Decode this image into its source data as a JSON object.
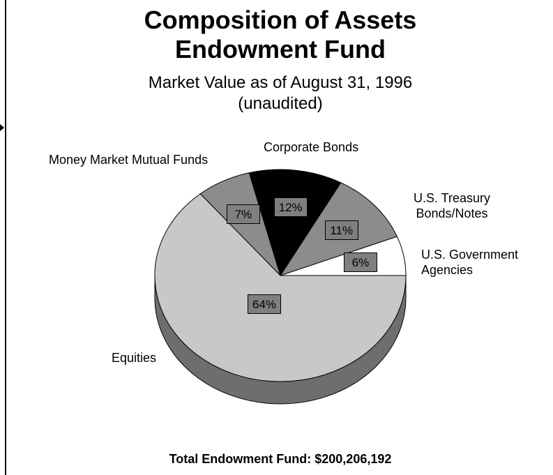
{
  "chart_data": {
    "type": "pie",
    "title": "Composition of Assets Endowment Fund",
    "subtitle": "Market Value as of August 31, 1996 (unaudited)",
    "categories": [
      "U.S. Government Agencies",
      "U.S. Treasury Bonds/Notes",
      "Corporate Bonds",
      "Money Market Mutual Funds",
      "Equities"
    ],
    "values": [
      6,
      11,
      12,
      7,
      64
    ],
    "value_labels": [
      "6%",
      "11%",
      "12%",
      "7%",
      "64%"
    ],
    "colors": [
      "#ffffff",
      "#8c8c8c",
      "#000000",
      "#8c8c8c",
      "#c8c8c8"
    ],
    "footer": "Total Endowment Fund:  $200,206,192"
  }
}
